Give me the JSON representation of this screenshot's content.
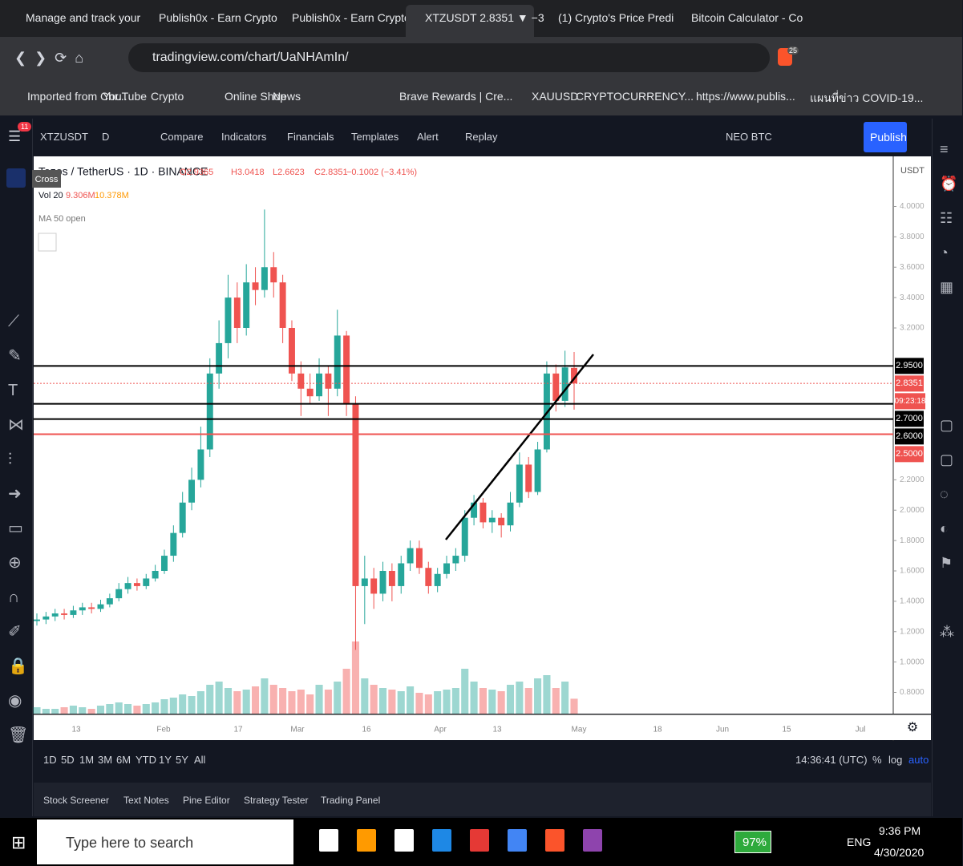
{
  "browser": {
    "tabs": [
      "Manage and track your",
      "Publish0x - Earn Crypto",
      "Publish0x - Earn Crypto",
      "XTZUSDT 2.8351 ▼ −3",
      "(1) Crypto's Price Predi",
      "Bitcoin Calculator - Co"
    ],
    "url": "tradingview.com/chart/UaNHAmIn/",
    "badge": "25",
    "bookmarks": [
      "Imported from Chr...",
      "YouTube",
      "Crypto",
      "Online Shop",
      "News",
      "Brave Rewards | Cre...",
      "XAUUSD",
      "CRYPTOCURRENCY...",
      "https://www.publis...",
      "แผนที่ข่าว COVID-19..."
    ]
  },
  "toolbar": {
    "symbol": "XTZUSDT",
    "interval": "D",
    "items": [
      "Compare",
      "Indicators",
      "Financials",
      "Templates",
      "Alert",
      "Replay"
    ],
    "pair": "NEO BTC",
    "publish": "Publish",
    "notifications": "11",
    "tooltip": "Cross"
  },
  "chart_data": {
    "type": "candlestick",
    "title": "Tezos / TetherUS · 1D · BINANCE",
    "ohlc": [
      "O2.9365",
      "H3.0418",
      "L2.6623",
      "C2.8351",
      "−0.1002 (−3.41%)"
    ],
    "volume_name": "Vol 20",
    "volume_ma": "10.378M",
    "ma_label": "MA 50 open",
    "currency": "USDT",
    "ylim": [
      0.66,
      4.33
    ],
    "yticks": [
      {
        "value": 4,
        "label": "4.0000"
      },
      {
        "value": 3.8,
        "label": "3.8000"
      },
      {
        "value": 3.6,
        "label": "3.6000"
      },
      {
        "value": 3.4,
        "label": "3.4000"
      },
      {
        "value": 3.2,
        "label": "3.2000"
      },
      {
        "value": 2.2,
        "label": "2.2000"
      },
      {
        "value": 2,
        "label": "2.0000"
      },
      {
        "value": 1.8,
        "label": "1.8000"
      },
      {
        "value": 1.6,
        "label": "1.6000"
      },
      {
        "value": 1.4,
        "label": "1.4000"
      },
      {
        "value": 1.2,
        "label": "1.2000"
      },
      {
        "value": 1,
        "label": "1.0000"
      },
      {
        "value": 0.8,
        "label": "0.8000"
      }
    ],
    "time_labels": [
      "13",
      "Feb",
      "17",
      "Mar",
      "16",
      "Apr",
      "13",
      "May",
      "18",
      "Jun",
      "15",
      "Jul"
    ],
    "open": [
      1.27,
      1.28,
      1.3,
      1.32,
      1.31,
      1.34,
      1.36,
      1.35,
      1.38,
      1.42,
      1.48,
      1.52,
      1.5,
      1.55,
      1.6,
      1.7,
      1.85,
      2.05,
      2.2,
      2.4,
      2.9,
      3.1,
      3.4,
      3.2,
      3.5,
      3.45,
      3.6,
      3.5,
      3.2,
      2.9,
      2.8,
      2.75,
      2.9,
      2.8,
      3.15,
      2.7,
      1.5,
      1.55,
      1.45,
      1.6,
      1.5,
      1.65,
      1.75,
      1.62,
      1.5,
      1.58,
      1.65,
      1.7,
      1.95,
      2.05,
      1.92,
      1.95,
      1.9,
      2.05,
      2.3,
      2.12,
      2.4,
      2.9,
      2.72,
      2.9365
    ],
    "high": [
      1.32,
      1.33,
      1.35,
      1.35,
      1.37,
      1.39,
      1.39,
      1.41,
      1.45,
      1.52,
      1.56,
      1.55,
      1.58,
      1.64,
      1.74,
      1.9,
      2.12,
      2.28,
      2.55,
      3.0,
      3.25,
      3.55,
      3.5,
      3.62,
      3.6,
      3.98,
      3.7,
      3.55,
      3.25,
      2.98,
      2.9,
      3.0,
      2.95,
      3.32,
      3.18,
      2.75,
      1.7,
      1.62,
      1.66,
      1.65,
      1.7,
      1.8,
      1.8,
      1.66,
      1.62,
      1.7,
      1.75,
      2.0,
      2.1,
      2.08,
      2.0,
      1.98,
      2.12,
      2.38,
      2.35,
      2.45,
      2.98,
      2.96,
      3.05,
      3.0418
    ],
    "low": [
      1.24,
      1.25,
      1.27,
      1.28,
      1.29,
      1.31,
      1.32,
      1.33,
      1.36,
      1.4,
      1.45,
      1.47,
      1.48,
      1.53,
      1.58,
      1.66,
      1.82,
      2.0,
      2.15,
      2.35,
      2.8,
      3.0,
      3.1,
      3.15,
      3.35,
      3.4,
      3.4,
      3.1,
      2.85,
      2.62,
      2.7,
      2.72,
      2.62,
      2.75,
      2.62,
      1.08,
      1.25,
      1.35,
      1.4,
      1.4,
      1.45,
      1.6,
      1.58,
      1.45,
      1.46,
      1.55,
      1.6,
      1.66,
      1.9,
      1.88,
      1.85,
      1.82,
      1.86,
      2.02,
      2.08,
      2.1,
      2.38,
      2.65,
      2.68,
      2.6623
    ],
    "close": [
      1.28,
      1.3,
      1.32,
      1.31,
      1.34,
      1.36,
      1.35,
      1.38,
      1.42,
      1.48,
      1.52,
      1.5,
      1.55,
      1.6,
      1.7,
      1.85,
      2.05,
      2.2,
      2.4,
      2.9,
      3.1,
      3.4,
      3.2,
      3.5,
      3.45,
      3.6,
      3.5,
      3.2,
      2.9,
      2.8,
      2.75,
      2.9,
      2.8,
      3.15,
      2.7,
      1.5,
      1.55,
      1.45,
      1.6,
      1.5,
      1.65,
      1.75,
      1.62,
      1.5,
      1.58,
      1.65,
      1.7,
      1.95,
      2.05,
      1.92,
      1.95,
      1.9,
      2.05,
      2.3,
      2.12,
      2.4,
      2.9,
      2.72,
      2.94,
      2.8351
    ],
    "volume": [
      4,
      3,
      3,
      4,
      5,
      4,
      3,
      5,
      6,
      7,
      6,
      5,
      6,
      7,
      9,
      10,
      12,
      11,
      14,
      18,
      20,
      16,
      14,
      15,
      17,
      22,
      18,
      16,
      14,
      15,
      12,
      18,
      15,
      20,
      28,
      45,
      22,
      18,
      16,
      15,
      14,
      17,
      13,
      12,
      14,
      15,
      16,
      28,
      20,
      16,
      15,
      14,
      18,
      20,
      16,
      22,
      24,
      16,
      20,
      9.306
    ],
    "volume_label": "9.306M",
    "up_color": "#26a69a",
    "down_color": "#ef5350",
    "levels": [
      {
        "value": 2.95,
        "label": "2.9500",
        "color": "#000000"
      },
      {
        "value": 2.7,
        "label": "2.7000",
        "color": "#000000"
      },
      {
        "value": 2.6,
        "label": "2.6000",
        "color": "#000000"
      },
      {
        "value": 2.5,
        "label": "2.5000",
        "color": "#ef5350"
      }
    ],
    "last": {
      "value": 2.8351,
      "label": "2.8351",
      "countdown": "09:23:18"
    }
  },
  "bottom": {
    "ranges": [
      "1D",
      "5D",
      "1M",
      "3M",
      "6M",
      "YTD",
      "1Y",
      "5Y",
      "All"
    ],
    "clock": "14:36:41 (UTC)",
    "scale_options": [
      "%",
      "log",
      "auto"
    ],
    "panels": [
      "Stock Screener",
      "Text Notes",
      "Pine Editor",
      "Strategy Tester",
      "Trading Panel"
    ]
  },
  "taskbar": {
    "search": "Type here to search",
    "battery": "97%",
    "lang": "ENG",
    "time": "9:36 PM",
    "date": "4/30/2020"
  }
}
